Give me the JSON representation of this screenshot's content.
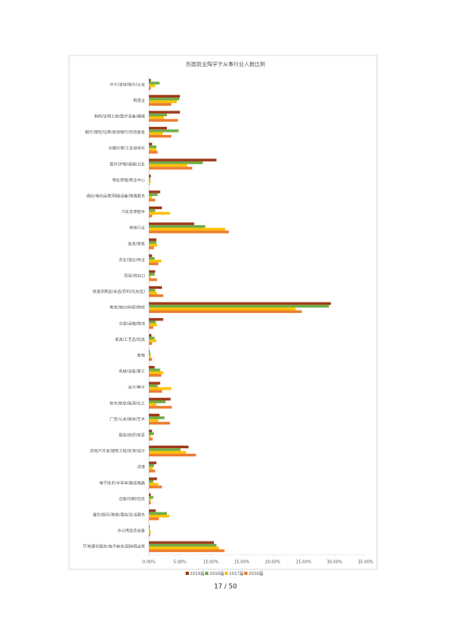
{
  "chart_data": {
    "type": "hbar",
    "title": "历届就业陶学子从事行业人数比例",
    "categories": [
      "中介/咨询/猎头/认证",
      "制造业",
      "制药/生物工程/医疗设备/器械",
      "银行/保险/证券/投资银行/风险基金",
      "仪器仪表/工业自动化",
      "医疗/护理/保健/卫生",
      "物业管理/商业中心",
      "通信/电信运营/网络设备/增值服务",
      "汽车及零配件",
      "其他行业",
      "批发/零售",
      "农业/渔业/林业",
      "贸易/进出口",
      "快速消费品(食品/饮料/化妆品)",
      "教育/培训/科研/院校",
      "交通/运输/物流",
      "家具/工艺品/玩具",
      "家电",
      "机械/设备/重工",
      "会计/审计",
      "航天/航空/能源/化工",
      "广告/公关/媒体/艺术",
      "服装/纺织/皮革",
      "房地产开发/建筑工程/装潢/设计",
      "法律",
      "电子技术/半导体/集成电路",
      "出版/印刷/包装",
      "餐饮/娱乐/旅游/酒店/生活服务",
      "办公用品及设备",
      "IT/软硬件服务/电子商务/因特网运营"
    ],
    "series": [
      {
        "name": "2019届",
        "color": "#9e3b1b",
        "values": [
          0.3,
          5.0,
          5.0,
          2.9,
          0.5,
          10.9,
          0.3,
          1.8,
          2.1,
          7.3,
          1.2,
          0.5,
          1.0,
          2.1,
          29.4,
          2.3,
          0.4,
          0.1,
          0.9,
          1.8,
          3.5,
          1.7,
          0.5,
          6.4,
          1.2,
          1.3,
          0.3,
          1.1,
          0.1,
          10.5
        ]
      },
      {
        "name": "2018届",
        "color": "#70ad47",
        "values": [
          1.7,
          4.9,
          2.9,
          4.8,
          1.2,
          8.7,
          0.2,
          1.4,
          1.0,
          9.1,
          1.2,
          0.9,
          0.9,
          1.0,
          29.1,
          1.1,
          0.9,
          0.2,
          1.8,
          1.4,
          2.7,
          2.5,
          0.8,
          5.1,
          0.8,
          0.7,
          0.7,
          2.9,
          0.1,
          10.9
        ]
      },
      {
        "name": "2017届",
        "color": "#ffc000",
        "values": [
          1.0,
          4.5,
          2.4,
          2.2,
          1.2,
          6.2,
          0.3,
          0.5,
          3.4,
          12.3,
          1.3,
          2.0,
          0.3,
          1.3,
          23.7,
          1.3,
          1.2,
          0.3,
          2.3,
          3.6,
          1.2,
          1.5,
          0.3,
          6.0,
          0.6,
          1.5,
          0.3,
          3.3,
          0.3,
          11.3
        ]
      },
      {
        "name": "2016届",
        "color": "#ed7d31",
        "values": [
          0.3,
          3.6,
          4.7,
          3.6,
          1.4,
          7.0,
          0.1,
          1.0,
          0.5,
          12.9,
          0.8,
          1.5,
          1.3,
          2.3,
          24.7,
          0.7,
          0.5,
          0.5,
          2.0,
          2.1,
          3.7,
          3.4,
          0.6,
          7.6,
          1.0,
          2.1,
          0.3,
          1.6,
          0.2,
          12.2
        ]
      }
    ],
    "xlim": [
      0,
      35
    ],
    "xticks": [
      {
        "value": 0,
        "label": "0.00%"
      },
      {
        "value": 5,
        "label": "5.00%"
      },
      {
        "value": 10,
        "label": "10.00%"
      },
      {
        "value": 15,
        "label": "15.00%"
      },
      {
        "value": 20,
        "label": "20.00%"
      },
      {
        "value": 25,
        "label": "25.00%"
      },
      {
        "value": 30,
        "label": "30.00%"
      },
      {
        "value": 35,
        "label": "35.00%"
      }
    ],
    "grid": false
  },
  "page_number": "17 / 50"
}
